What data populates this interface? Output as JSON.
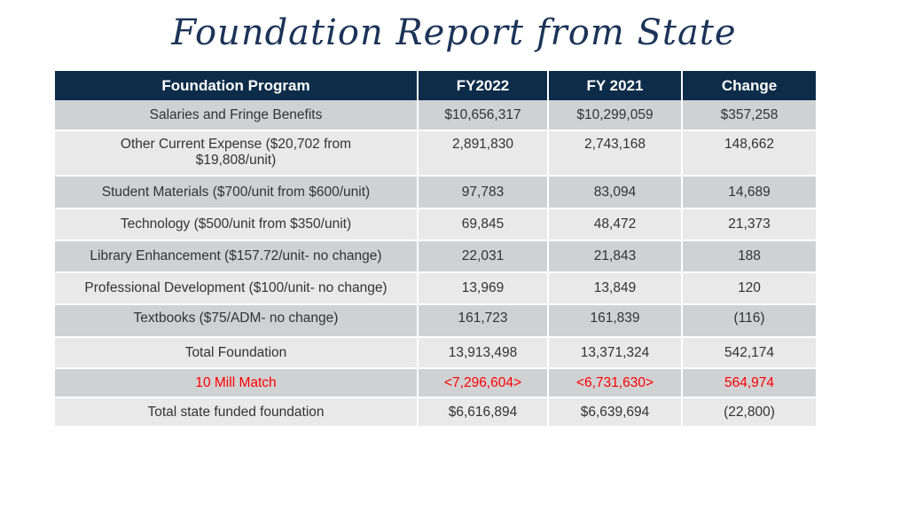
{
  "title": "Foundation Report from State",
  "table": {
    "headers": [
      "Foundation Program",
      "FY2022",
      "FY 2021",
      "Change"
    ],
    "rows": [
      {
        "program": "Salaries and Fringe Benefits",
        "fy2022": "$10,656,317",
        "fy2021": "$10,299,059",
        "change": "$357,258"
      },
      {
        "program": "Other Current Expense ($20,702 from $19,808/unit)",
        "fy2022": "2,891,830",
        "fy2021": "2,743,168",
        "change": "148,662"
      },
      {
        "program": "Student Materials ($700/unit from $600/unit)",
        "fy2022": "97,783",
        "fy2021": "83,094",
        "change": "14,689"
      },
      {
        "program": "Technology ($500/unit from $350/unit)",
        "fy2022": "69,845",
        "fy2021": "48,472",
        "change": "21,373"
      },
      {
        "program": "Library Enhancement ($157.72/unit- no change)",
        "fy2022": "22,031",
        "fy2021": "21,843",
        "change": "188"
      },
      {
        "program": "Professional Development ($100/unit- no change)",
        "fy2022": "13,969",
        "fy2021": "13,849",
        "change": "120"
      },
      {
        "program": "Textbooks ($75/ADM- no change)",
        "fy2022": "161,723",
        "fy2021": "161,839",
        "change": "(116)"
      },
      {
        "program": "Total Foundation",
        "fy2022": "13,913,498",
        "fy2021": "13,371,324",
        "change": "542,174"
      },
      {
        "program": "10 Mill Match",
        "fy2022": "<7,296,604>",
        "fy2021": "<6,731,630>",
        "change": "564,974"
      },
      {
        "program": "Total state funded foundation",
        "fy2022": "$6,616,894",
        "fy2021": "$6,639,694",
        "change": "(22,800)"
      }
    ]
  },
  "colors": {
    "header_bg": "#0c2c49",
    "title": "#1c3358",
    "row_dark": "#d0d1d3",
    "row_light": "#e9e9ea",
    "highlight_text": "#ff0000"
  }
}
